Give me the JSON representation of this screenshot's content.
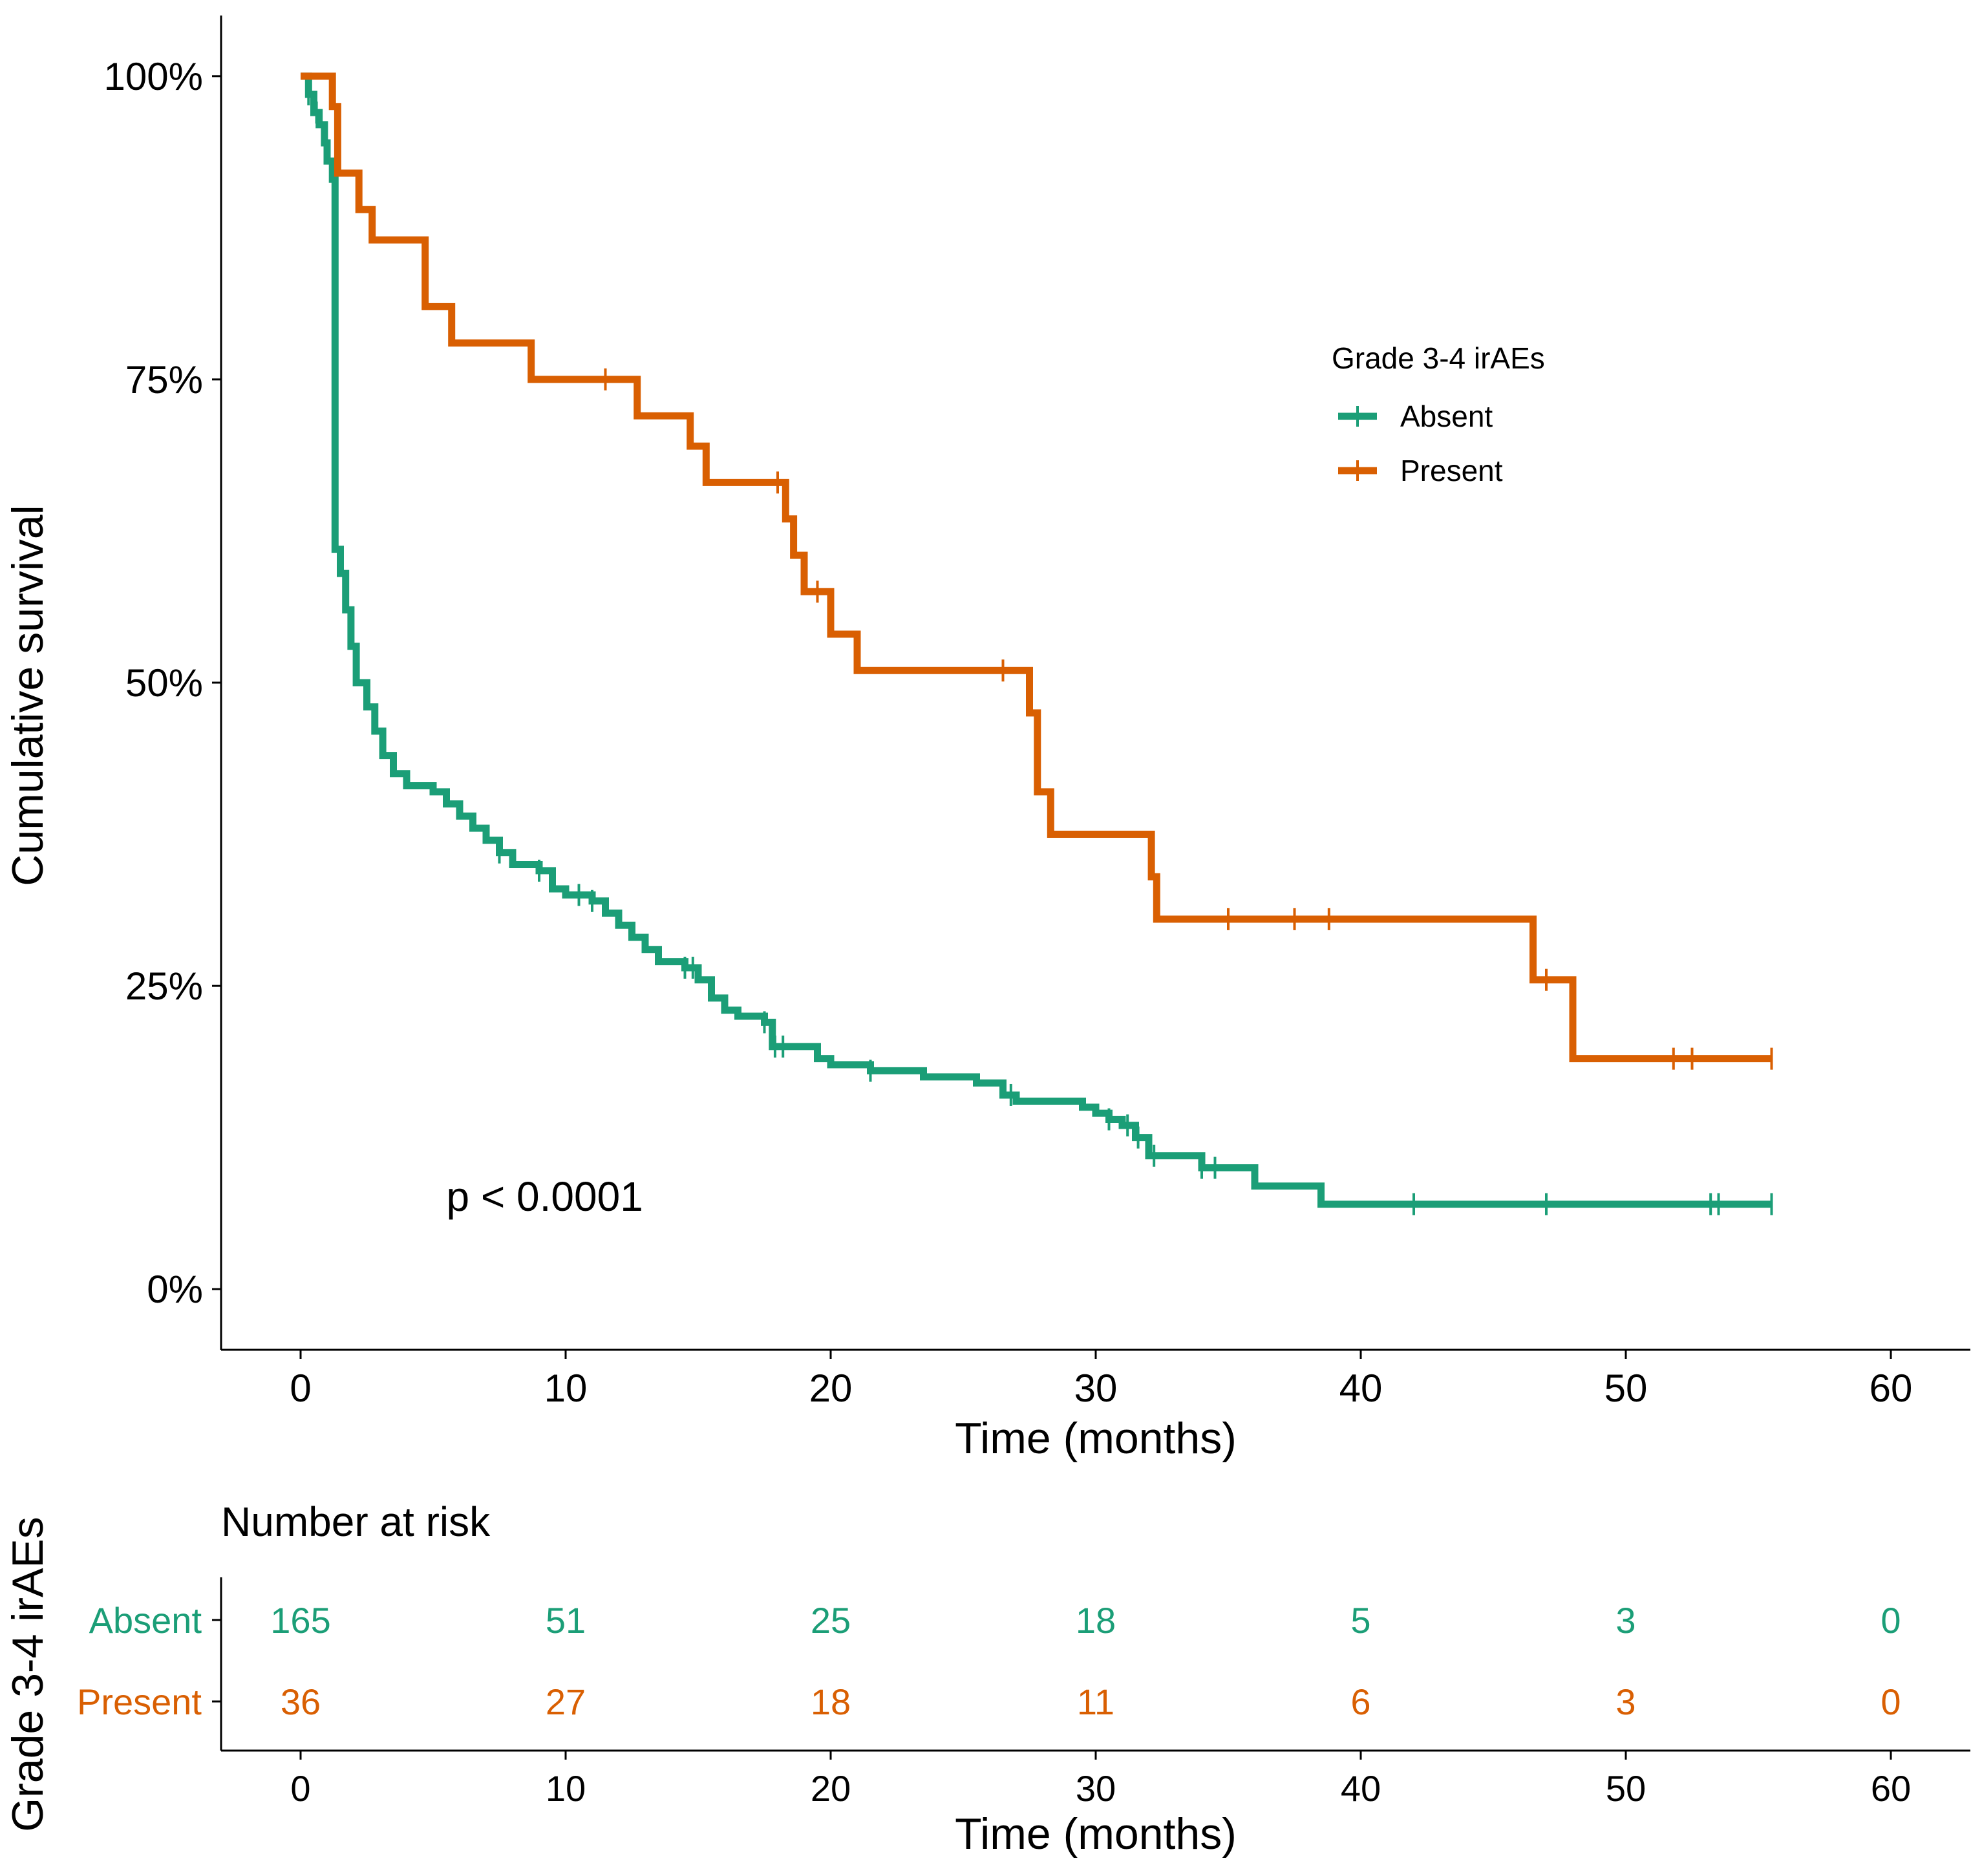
{
  "chart_data": {
    "type": "line",
    "subtype": "kaplan-meier",
    "xlabel": "Time (months)",
    "ylabel": "Cumulative survival",
    "xlim": [
      -3,
      63
    ],
    "ylim": [
      -0.05,
      1.05
    ],
    "x_ticks": [
      0,
      10,
      20,
      30,
      40,
      50,
      60
    ],
    "y_ticks": [
      {
        "value": 0,
        "label": "0%"
      },
      {
        "value": 0.25,
        "label": "25%"
      },
      {
        "value": 0.5,
        "label": "50%"
      },
      {
        "value": 0.75,
        "label": "75%"
      },
      {
        "value": 1,
        "label": "100%"
      }
    ],
    "grid": false,
    "annotation": "p < 0.0001",
    "legend": {
      "title": "Grade 3-4 irAEs",
      "position": "top-right"
    },
    "series": [
      {
        "name": "Absent",
        "color": "#1b9e77",
        "points": [
          [
            0,
            1.0
          ],
          [
            0.3,
            0.985
          ],
          [
            0.5,
            0.97
          ],
          [
            0.7,
            0.96
          ],
          [
            0.9,
            0.945
          ],
          [
            1.0,
            0.93
          ],
          [
            1.2,
            0.915
          ],
          [
            1.3,
            0.61
          ],
          [
            1.5,
            0.59
          ],
          [
            1.7,
            0.56
          ],
          [
            1.9,
            0.53
          ],
          [
            2.1,
            0.5
          ],
          [
            2.5,
            0.48
          ],
          [
            2.8,
            0.46
          ],
          [
            3.1,
            0.44
          ],
          [
            3.5,
            0.425
          ],
          [
            4.0,
            0.415
          ],
          [
            5.0,
            0.41
          ],
          [
            5.5,
            0.4
          ],
          [
            6.0,
            0.39
          ],
          [
            6.5,
            0.38
          ],
          [
            7.0,
            0.37
          ],
          [
            7.5,
            0.36
          ],
          [
            8.0,
            0.35
          ],
          [
            9.0,
            0.345
          ],
          [
            9.5,
            0.33
          ],
          [
            10.0,
            0.325
          ],
          [
            11.0,
            0.32
          ],
          [
            11.5,
            0.31
          ],
          [
            12.0,
            0.3
          ],
          [
            12.5,
            0.29
          ],
          [
            13.0,
            0.28
          ],
          [
            13.5,
            0.27
          ],
          [
            14.5,
            0.265
          ],
          [
            15.0,
            0.255
          ],
          [
            15.5,
            0.24
          ],
          [
            16.0,
            0.23
          ],
          [
            16.5,
            0.225
          ],
          [
            17.5,
            0.22
          ],
          [
            17.8,
            0.2
          ],
          [
            19.5,
            0.19
          ],
          [
            20.0,
            0.185
          ],
          [
            21.5,
            0.18
          ],
          [
            23.5,
            0.175
          ],
          [
            25.5,
            0.17
          ],
          [
            26.5,
            0.16
          ],
          [
            27.0,
            0.155
          ],
          [
            29.5,
            0.15
          ],
          [
            30.0,
            0.145
          ],
          [
            30.5,
            0.14
          ],
          [
            31.0,
            0.135
          ],
          [
            31.5,
            0.125
          ],
          [
            32.0,
            0.11
          ],
          [
            34.0,
            0.1
          ],
          [
            36.0,
            0.085
          ],
          [
            38.5,
            0.07
          ],
          [
            55.5,
            0.07
          ]
        ],
        "censor_times": [
          0.3,
          0.6,
          7.5,
          9.0,
          10.5,
          11.0,
          14.5,
          14.8,
          17.5,
          17.9,
          18.2,
          21.5,
          26.8,
          30.5,
          31.2,
          31.6,
          32.2,
          34.0,
          34.5,
          42.0,
          47.0,
          53.2,
          53.5,
          55.5
        ]
      },
      {
        "name": "Present",
        "color": "#d95f02",
        "points": [
          [
            0,
            1.0
          ],
          [
            1.2,
            0.975
          ],
          [
            1.4,
            0.92
          ],
          [
            2.2,
            0.89
          ],
          [
            2.7,
            0.865
          ],
          [
            4.7,
            0.81
          ],
          [
            5.7,
            0.78
          ],
          [
            8.7,
            0.75
          ],
          [
            12.7,
            0.72
          ],
          [
            14.7,
            0.695
          ],
          [
            15.3,
            0.665
          ],
          [
            18.3,
            0.635
          ],
          [
            18.6,
            0.605
          ],
          [
            19.0,
            0.575
          ],
          [
            20.0,
            0.54
          ],
          [
            21.0,
            0.51
          ],
          [
            27.5,
            0.475
          ],
          [
            27.8,
            0.41
          ],
          [
            28.3,
            0.375
          ],
          [
            32.1,
            0.34
          ],
          [
            32.3,
            0.305
          ],
          [
            46.5,
            0.255
          ],
          [
            48.0,
            0.19
          ],
          [
            55.5,
            0.19
          ]
        ],
        "censor_times": [
          11.5,
          18.0,
          19.5,
          26.5,
          35.0,
          37.5,
          38.8,
          47.0,
          51.8,
          52.5,
          55.5
        ]
      }
    ],
    "risk_table": {
      "title": "Number at risk",
      "ylabel": "Grade 3-4 irAEs",
      "xlabel": "Time (months)",
      "times": [
        0,
        10,
        20,
        30,
        40,
        50,
        60
      ],
      "rows": [
        {
          "name": "Absent",
          "color": "#1b9e77",
          "values": [
            165,
            51,
            25,
            18,
            5,
            3,
            0
          ]
        },
        {
          "name": "Present",
          "color": "#d95f02",
          "values": [
            36,
            27,
            18,
            11,
            6,
            3,
            0
          ]
        }
      ]
    }
  }
}
